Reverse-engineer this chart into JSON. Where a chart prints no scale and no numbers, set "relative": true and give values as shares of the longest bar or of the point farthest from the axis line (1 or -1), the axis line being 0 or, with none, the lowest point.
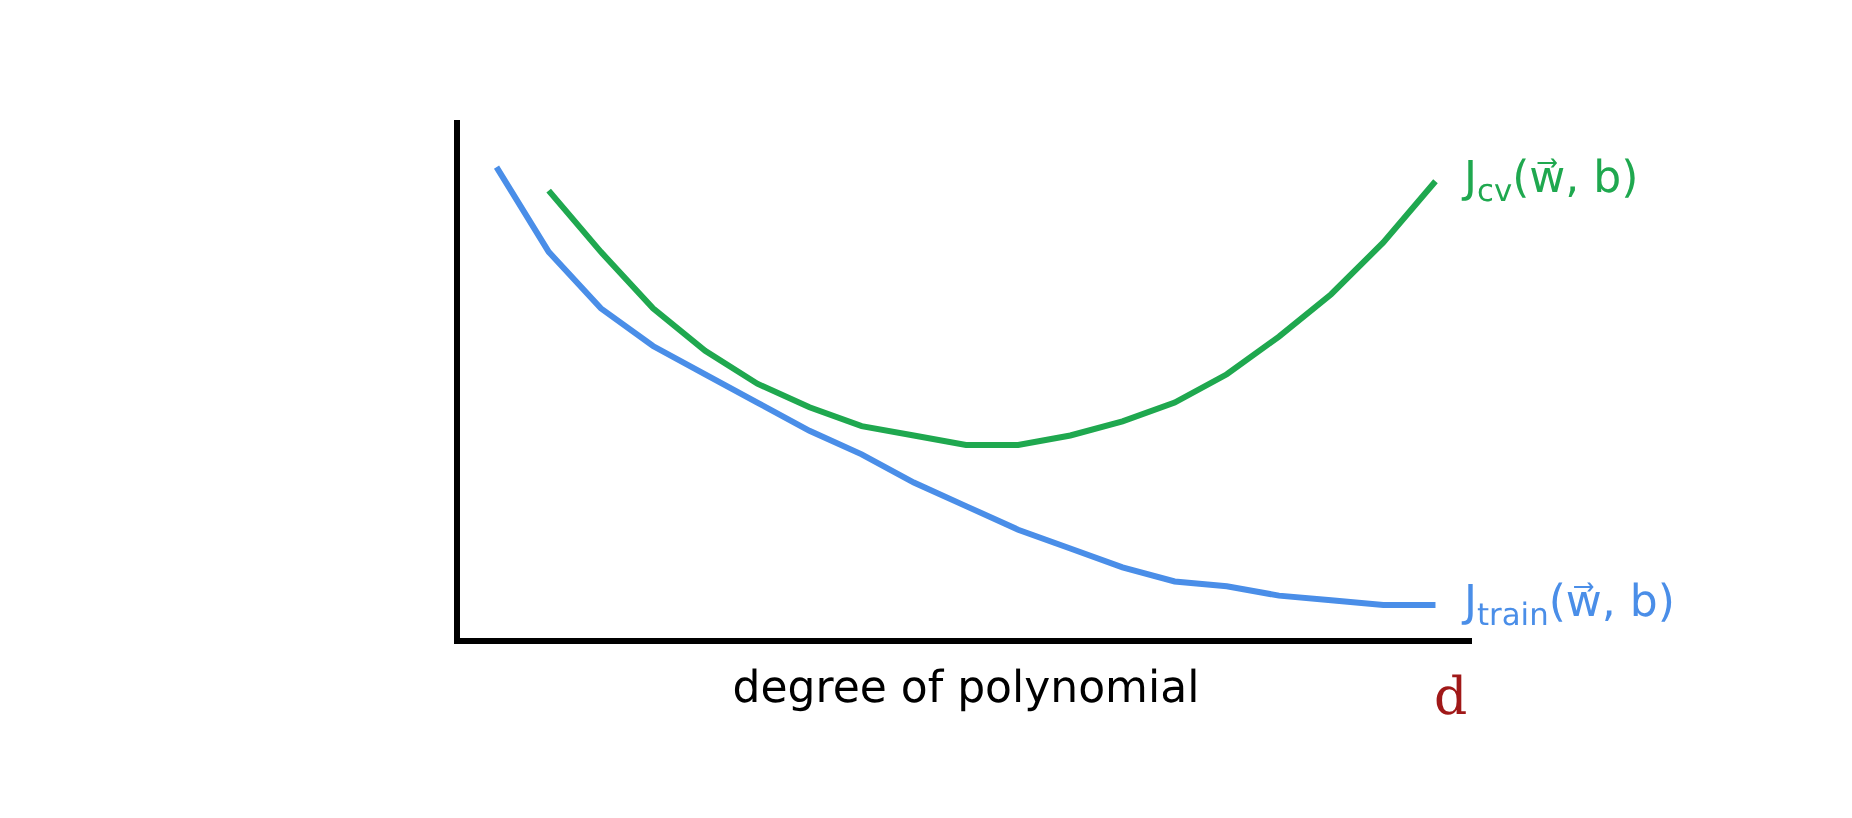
{
  "chart_data": {
    "type": "line",
    "relative": true,
    "xlabel": "degree of polynomial",
    "legend": false,
    "tick_labels": false,
    "categories": [
      null,
      null,
      null,
      null,
      null,
      null,
      null,
      null,
      null,
      null,
      null,
      null,
      null,
      null,
      null,
      null,
      null,
      null,
      null
    ],
    "series": [
      {
        "name": "J$_{cv}$(w⃗, b)",
        "color": "#1fa84f",
        "values": [
          null,
          0.95,
          0.82,
          0.7,
          0.61,
          0.54,
          0.49,
          0.45,
          0.43,
          0.41,
          0.41,
          0.43,
          0.46,
          0.5,
          0.56,
          0.64,
          0.73,
          0.84,
          0.97
        ]
      },
      {
        "name": "J$_{train}$(w⃗, b)",
        "color": "#4a8ee8",
        "values": [
          1,
          0.82,
          0.7,
          0.62,
          0.56,
          0.5,
          0.44,
          0.39,
          0.33,
          0.28,
          0.23,
          0.19,
          0.15,
          0.12,
          0.11,
          0.09,
          0.08,
          0.07,
          0.07
        ]
      }
    ],
    "annotations": [
      "d"
    ]
  }
}
